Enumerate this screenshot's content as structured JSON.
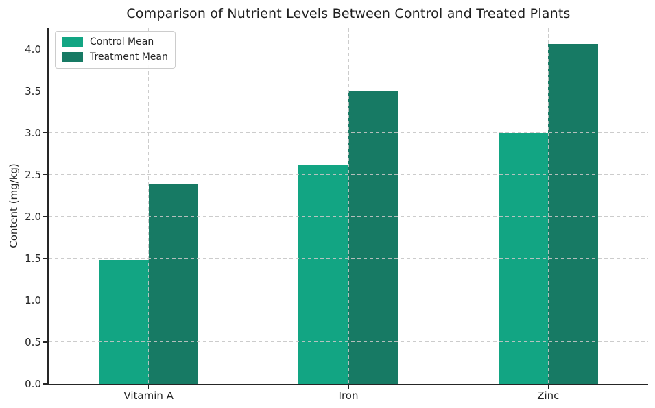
{
  "chart_data": {
    "type": "bar",
    "title": "Comparison of Nutrient Levels Between Control and Treated Plants",
    "xlabel": "",
    "ylabel": "Content (mg/kg)",
    "categories": [
      "Vitamin A",
      "Iron",
      "Zinc"
    ],
    "series": [
      {
        "name": "Control Mean",
        "color": "#12a583",
        "values": [
          1.48,
          2.61,
          3.0
        ]
      },
      {
        "name": "Treatment Mean",
        "color": "#177a64",
        "values": [
          2.38,
          3.5,
          4.06
        ]
      }
    ],
    "yticks": [
      0.0,
      0.5,
      1.0,
      1.5,
      2.0,
      2.5,
      3.0,
      3.5,
      4.0
    ],
    "ylim": [
      0,
      4.25
    ],
    "grid": true,
    "grid_style": "dashed",
    "legend_position": "upper left",
    "bar_group_width_fraction": 0.5
  }
}
